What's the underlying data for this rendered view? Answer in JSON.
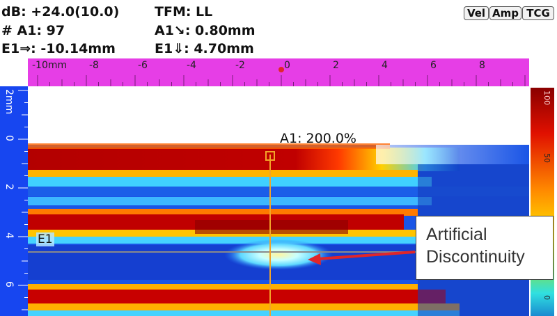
{
  "readouts": {
    "db": "dB: +24.0(10.0)",
    "tfm": "TFM: LL",
    "a1_count": "# A1: 97",
    "a1_depth": "A1↘: 0.80mm",
    "e1_pos": "E1⇒: -10.14mm",
    "e1_depth": "E1⇓: 4.70mm"
  },
  "modes": {
    "vel": "Vel",
    "amp": "Amp",
    "tcg": "TCG"
  },
  "horizontal_ruler": {
    "unit_label": "-10mm",
    "ticks": [
      "-8",
      "-6",
      "-4",
      "-2",
      "0",
      "2",
      "4",
      "6",
      "8"
    ]
  },
  "vertical_ruler": {
    "unit_label": "2mm",
    "ticks": [
      "0",
      "2",
      "4",
      "6"
    ]
  },
  "gate_label": "A1: 200.0%",
  "cursor_label": "E1",
  "annotation": {
    "line1": "Artificial",
    "line2": "Discontinuity"
  },
  "palette": {
    "top_label": "100",
    "mid_label": "50",
    "bottom_label": "0"
  },
  "colors": {
    "ruler_magenta": "#e63ee6",
    "ruler_blue": "#1746f0",
    "gate_orange": "#f2a428",
    "arrow_red": "#e0262a"
  }
}
